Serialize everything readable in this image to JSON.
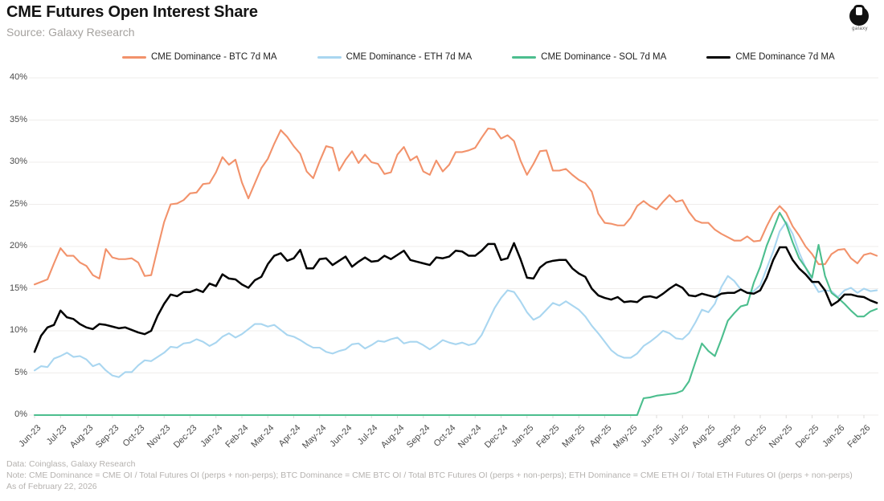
{
  "header": {
    "title": "CME Futures Open Interest Share",
    "subtitle": "Source: Galaxy Research",
    "logo_label": "galaxy"
  },
  "footer": {
    "line1": "Data: Coinglass, Galaxy Research",
    "line2": "Note: CME Dominance = CME OI / Total Futures OI (perps + non-perps); BTC Dominance = CME BTC OI / Total BTC Futures OI (perps + non-perps); ETH Dominance = CME ETH OI / Total ETH Futures OI (perps + non-perps)",
    "line3": "As of February 22, 2026"
  },
  "chart_data": {
    "type": "line",
    "title": "CME Futures Open Interest Share",
    "xlabel": "",
    "ylabel": "",
    "ylim": [
      0,
      40
    ],
    "yticks": [
      0,
      5,
      10,
      15,
      20,
      25,
      30,
      35,
      40
    ],
    "ytick_suffix": "%",
    "grid": "horizontal",
    "legend_position": "top",
    "x_labels": [
      "Jun-23",
      "Jul-23",
      "Aug-23",
      "Sep-23",
      "Oct-23",
      "Nov-23",
      "Dec-23",
      "Jan-24",
      "Feb-24",
      "Mar-24",
      "Apr-24",
      "May-24",
      "Jun-24",
      "Jul-24",
      "Aug-24",
      "Sep-24",
      "Oct-24",
      "Nov-24",
      "Dec-24",
      "Jan-25",
      "Feb-25",
      "Mar-25",
      "Apr-25",
      "May-25",
      "Jun-25",
      "Jul-25",
      "Aug-25",
      "Sep-25",
      "Oct-25",
      "Nov-25",
      "Dec-25",
      "Jan-26",
      "Feb-26"
    ],
    "x_unit": "months since Jun-2023, sampled every 0.25 month",
    "series": [
      {
        "name": "CME Dominance - BTC 7d MA",
        "color": "#F2926B",
        "values": [
          15.5,
          15.8,
          16.1,
          18.0,
          19.8,
          18.9,
          18.9,
          18.1,
          17.7,
          16.6,
          16.2,
          19.7,
          18.7,
          18.5,
          18.5,
          18.6,
          18.1,
          16.5,
          16.6,
          19.8,
          22.9,
          25.0,
          25.1,
          25.5,
          26.3,
          26.4,
          27.4,
          27.5,
          28.8,
          30.6,
          29.7,
          30.3,
          27.6,
          25.7,
          27.5,
          29.3,
          30.4,
          32.2,
          33.8,
          33.0,
          31.9,
          31.0,
          28.9,
          28.1,
          30.1,
          31.9,
          31.7,
          29.0,
          30.3,
          31.3,
          29.9,
          30.9,
          30.0,
          29.8,
          28.6,
          28.8,
          30.9,
          31.8,
          30.2,
          30.7,
          28.9,
          28.5,
          30.2,
          28.9,
          29.7,
          31.2,
          31.2,
          31.4,
          31.7,
          32.9,
          34.0,
          33.9,
          32.8,
          33.2,
          32.5,
          30.2,
          28.5,
          29.8,
          31.3,
          31.4,
          29.0,
          29.0,
          29.2,
          28.5,
          27.9,
          27.5,
          26.5,
          23.9,
          22.8,
          22.7,
          22.5,
          22.5,
          23.4,
          24.8,
          25.4,
          24.8,
          24.4,
          25.3,
          26.1,
          25.3,
          25.5,
          24.1,
          23.1,
          22.8,
          22.8,
          22.0,
          21.5,
          21.1,
          20.7,
          20.7,
          21.2,
          20.6,
          20.7,
          22.4,
          23.9,
          24.8,
          24.0,
          22.4,
          21.3,
          20.0,
          19.1,
          17.9,
          17.9,
          19.1,
          19.6,
          19.7,
          18.6,
          18.0,
          19.0,
          19.2,
          18.9
        ]
      },
      {
        "name": "CME Dominance - ETH 7d MA",
        "color": "#A9D6F0",
        "values": [
          5.3,
          5.8,
          5.7,
          6.7,
          7.0,
          7.4,
          6.9,
          7.0,
          6.6,
          5.8,
          6.1,
          5.3,
          4.7,
          4.5,
          5.1,
          5.1,
          5.9,
          6.5,
          6.4,
          6.9,
          7.4,
          8.1,
          8.0,
          8.5,
          8.6,
          9.0,
          8.7,
          8.2,
          8.6,
          9.3,
          9.7,
          9.2,
          9.6,
          10.2,
          10.8,
          10.8,
          10.5,
          10.7,
          10.1,
          9.5,
          9.3,
          8.9,
          8.4,
          8.0,
          8.0,
          7.5,
          7.3,
          7.6,
          7.8,
          8.4,
          8.5,
          7.9,
          8.3,
          8.8,
          8.7,
          9.0,
          9.2,
          8.5,
          8.7,
          8.7,
          8.3,
          7.8,
          8.3,
          8.9,
          8.6,
          8.4,
          8.6,
          8.3,
          8.5,
          9.5,
          11.1,
          12.7,
          13.9,
          14.8,
          14.6,
          13.5,
          12.2,
          11.3,
          11.7,
          12.5,
          13.3,
          13.0,
          13.5,
          13.0,
          12.5,
          11.7,
          10.6,
          9.7,
          8.7,
          7.7,
          7.1,
          6.8,
          6.8,
          7.3,
          8.2,
          8.7,
          9.3,
          10.0,
          9.7,
          9.1,
          9.0,
          9.7,
          11.0,
          12.5,
          12.2,
          13.2,
          15.2,
          16.5,
          15.9,
          14.9,
          14.5,
          14.7,
          15.4,
          17.4,
          19.4,
          21.8,
          22.9,
          21.5,
          19.3,
          17.5,
          15.9,
          14.6,
          14.8,
          14.7,
          14.0,
          14.8,
          15.1,
          14.5,
          15.0,
          14.7,
          14.8
        ]
      },
      {
        "name": "CME Dominance - SOL 7d MA",
        "color": "#4CBE8E",
        "values": [
          0,
          0,
          0,
          0,
          0,
          0,
          0,
          0,
          0,
          0,
          0,
          0,
          0,
          0,
          0,
          0,
          0,
          0,
          0,
          0,
          0,
          0,
          0,
          0,
          0,
          0,
          0,
          0,
          0,
          0,
          0,
          0,
          0,
          0,
          0,
          0,
          0,
          0,
          0,
          0,
          0,
          0,
          0,
          0,
          0,
          0,
          0,
          0,
          0,
          0,
          0,
          0,
          0,
          0,
          0,
          0,
          0,
          0,
          0,
          0,
          0,
          0,
          0,
          0,
          0,
          0,
          0,
          0,
          0,
          0,
          0,
          0,
          0,
          0,
          0,
          0,
          0,
          0,
          0,
          0,
          0,
          0,
          0,
          0,
          0,
          0,
          0,
          0,
          0,
          0,
          0,
          0,
          0,
          0,
          2.0,
          2.1,
          2.3,
          2.4,
          2.5,
          2.6,
          2.9,
          4.0,
          6.3,
          8.5,
          7.6,
          7.0,
          9.0,
          11.2,
          12.1,
          12.9,
          13.1,
          15.7,
          17.6,
          20.1,
          22.0,
          24.0,
          22.7,
          20.5,
          18.6,
          17.5,
          16.3,
          20.2,
          16.5,
          14.5,
          13.9,
          13.2,
          12.4,
          11.7,
          11.7,
          12.3,
          12.6
        ]
      },
      {
        "name": "CME Dominance 7d MA",
        "color": "#000000",
        "values": [
          7.5,
          9.4,
          10.4,
          10.7,
          12.4,
          11.6,
          11.4,
          10.8,
          10.4,
          10.2,
          10.8,
          10.7,
          10.5,
          10.3,
          10.4,
          10.1,
          9.8,
          9.6,
          10.0,
          11.8,
          13.2,
          14.3,
          14.1,
          14.6,
          14.6,
          14.9,
          14.6,
          15.6,
          15.3,
          16.7,
          16.2,
          16.1,
          15.5,
          15.1,
          16.0,
          16.4,
          17.9,
          18.9,
          19.2,
          18.3,
          18.6,
          19.6,
          17.4,
          17.4,
          18.5,
          18.6,
          17.8,
          18.3,
          18.8,
          17.6,
          18.2,
          18.7,
          18.2,
          18.3,
          18.9,
          18.5,
          19.0,
          19.5,
          18.4,
          18.2,
          18.0,
          17.8,
          18.7,
          18.6,
          18.8,
          19.5,
          19.4,
          18.9,
          18.9,
          19.5,
          20.3,
          20.3,
          18.4,
          18.6,
          20.4,
          18.5,
          16.3,
          16.2,
          17.5,
          18.1,
          18.3,
          18.4,
          18.4,
          17.4,
          16.8,
          16.4,
          15.0,
          14.2,
          13.9,
          13.7,
          14.0,
          13.4,
          13.5,
          13.4,
          14.0,
          14.1,
          13.9,
          14.4,
          15.0,
          15.5,
          15.1,
          14.2,
          14.1,
          14.4,
          14.2,
          14.0,
          14.4,
          14.5,
          14.5,
          14.9,
          14.5,
          14.4,
          14.8,
          16.3,
          18.4,
          19.9,
          19.9,
          18.4,
          17.4,
          16.7,
          15.8,
          15.8,
          14.8,
          13.0,
          13.5,
          14.3,
          14.3,
          14.1,
          14.0,
          13.6,
          13.3
        ]
      }
    ]
  }
}
